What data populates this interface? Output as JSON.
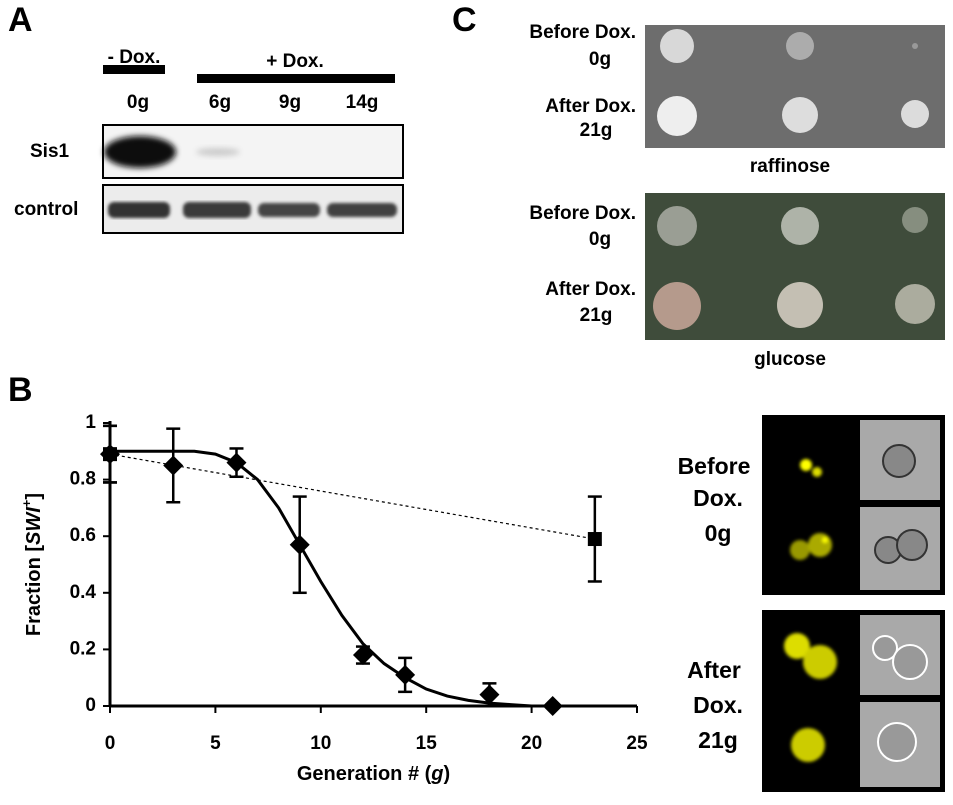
{
  "panel_labels": {
    "a": "A",
    "b": "B",
    "c": "C"
  },
  "panel_a": {
    "minus_dox": "- Dox.",
    "plus_dox": "+ Dox.",
    "lanes": [
      "0g",
      "6g",
      "9g",
      "14g"
    ],
    "rows": [
      "Sis1",
      "control"
    ]
  },
  "panel_c": {
    "plates": [
      {
        "rows": [
          [
            "Before Dox.",
            "0g"
          ],
          [
            "After Dox.",
            "21g"
          ]
        ],
        "medium": "raffinose"
      },
      {
        "rows": [
          [
            "Before Dox.",
            "0g"
          ],
          [
            "After Dox.",
            "21g"
          ]
        ],
        "medium": "glucose"
      }
    ]
  },
  "micrographs": {
    "before": [
      "Before",
      "Dox.",
      "0g"
    ],
    "after": [
      "After",
      "Dox.",
      "21g"
    ]
  },
  "chart_data": {
    "type": "line",
    "x_label": {
      "text": "Generation # (",
      "italic": "g",
      "end": ")"
    },
    "y_label": {
      "text": "Fraction [",
      "italic": "SWI",
      "sup": "+",
      "end": "]"
    },
    "xlim": [
      0,
      25
    ],
    "xticks": [
      0,
      5,
      10,
      15,
      20,
      25
    ],
    "ylim": [
      0,
      1
    ],
    "yticks": [
      0,
      0.2,
      0.4,
      0.6,
      0.8,
      1
    ],
    "series": [
      {
        "color": "#000000",
        "marker": "diamond",
        "line": "none",
        "x": [
          0,
          3,
          6,
          9,
          12,
          14,
          18,
          21
        ],
        "values": [
          0.89,
          0.85,
          0.86,
          0.57,
          0.18,
          0.11,
          0.04,
          0.0
        ],
        "errors": [
          0.1,
          0.13,
          0.05,
          0.17,
          0.03,
          0.06,
          0.04,
          0.0
        ]
      },
      {
        "color": "#000000",
        "marker": "square",
        "line": "dotted",
        "x": [
          0,
          23
        ],
        "values": [
          0.89,
          0.59
        ],
        "errors": [
          0.1,
          0.15
        ]
      },
      {
        "color": "#000000",
        "marker": "none",
        "line": "solid",
        "x": [
          0,
          2,
          4,
          5,
          6,
          7,
          8,
          9,
          10,
          11,
          12,
          13,
          14,
          15,
          16,
          17,
          18,
          19,
          20
        ],
        "values": [
          0.9,
          0.9,
          0.9,
          0.89,
          0.86,
          0.8,
          0.7,
          0.57,
          0.44,
          0.32,
          0.22,
          0.15,
          0.1,
          0.06,
          0.035,
          0.02,
          0.01,
          0.005,
          0.0
        ]
      }
    ]
  }
}
